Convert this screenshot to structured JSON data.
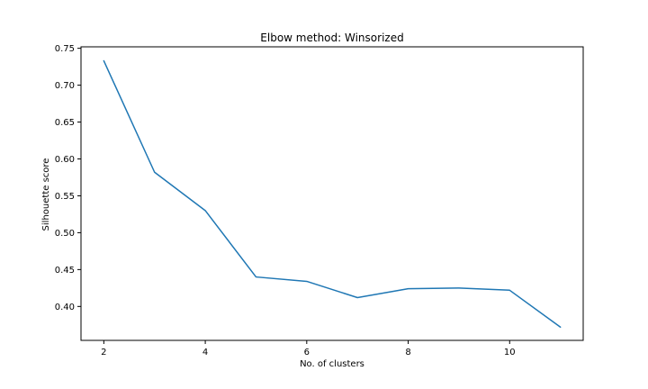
{
  "chart_data": {
    "type": "line",
    "title": "Elbow method: Winsorized",
    "xlabel": "No. of clusters",
    "ylabel": "Silhouette score",
    "x": [
      2,
      3,
      4,
      5,
      6,
      7,
      8,
      9,
      10,
      11
    ],
    "series": [
      {
        "values": [
          0.733,
          0.582,
          0.53,
          0.44,
          0.434,
          0.412,
          0.424,
          0.425,
          0.422,
          0.372
        ],
        "color": "#1f77b4"
      }
    ],
    "xlim": [
      1.55,
      11.45
    ],
    "ylim": [
      0.354,
      0.752
    ],
    "xticks": [
      2,
      4,
      6,
      8,
      10
    ],
    "xtick_labels": [
      "2",
      "4",
      "6",
      "8",
      "10"
    ],
    "yticks": [
      0.4,
      0.45,
      0.5,
      0.55,
      0.6,
      0.65,
      0.7,
      0.75
    ],
    "ytick_labels": [
      "0.40",
      "0.45",
      "0.50",
      "0.55",
      "0.60",
      "0.65",
      "0.70",
      "0.75"
    ],
    "grid": false,
    "legend": "none"
  }
}
